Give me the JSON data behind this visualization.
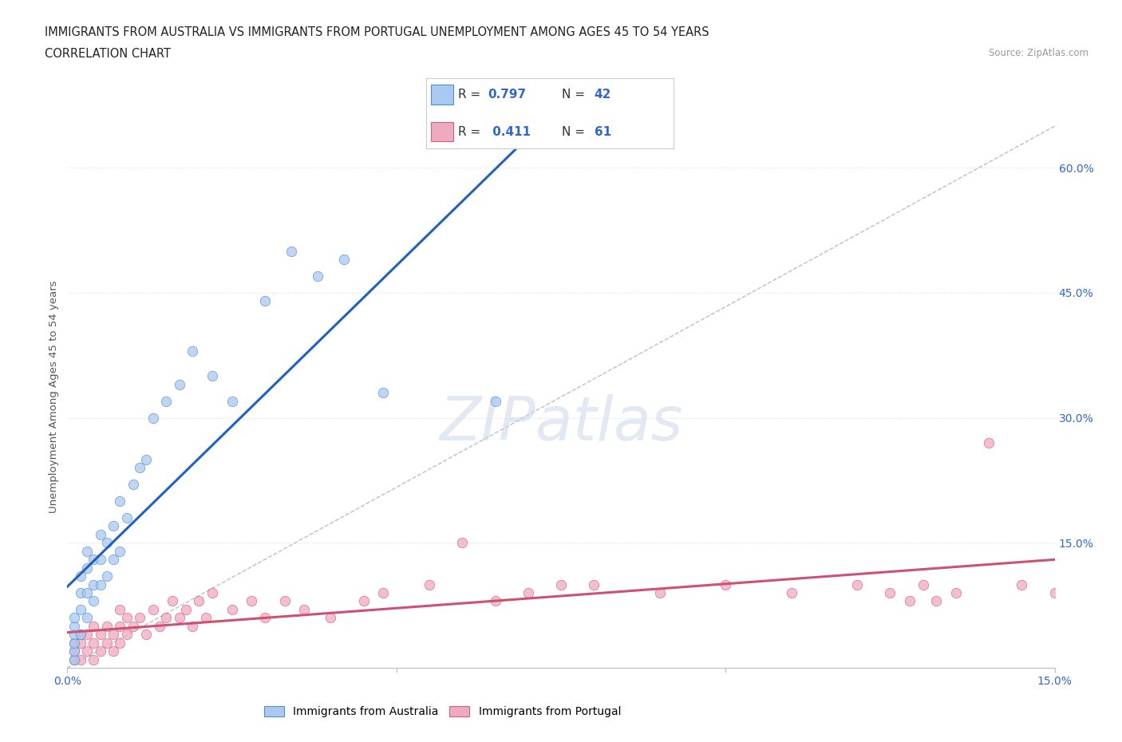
{
  "title_line1": "IMMIGRANTS FROM AUSTRALIA VS IMMIGRANTS FROM PORTUGAL UNEMPLOYMENT AMONG AGES 45 TO 54 YEARS",
  "title_line2": "CORRELATION CHART",
  "source_text": "Source: ZipAtlas.com",
  "ylabel": "Unemployment Among Ages 45 to 54 years",
  "xlim": [
    0.0,
    0.15
  ],
  "ylim": [
    0.0,
    0.65
  ],
  "xtick_positions": [
    0.0,
    0.05,
    0.1,
    0.15
  ],
  "xtick_labels": [
    "0.0%",
    "",
    "",
    "15.0%"
  ],
  "ytick_positions": [
    0.0,
    0.15,
    0.3,
    0.45,
    0.6
  ],
  "ytick_labels_right": [
    "",
    "15.0%",
    "30.0%",
    "45.0%",
    "60.0%"
  ],
  "australia_color": "#aac8f0",
  "portugal_color": "#f0aac0",
  "australia_edge_color": "#5090d0",
  "portugal_edge_color": "#d06080",
  "australia_line_color": "#2060c0",
  "portugal_line_color": "#d05070",
  "diagonal_color": "#aaaacc",
  "R_australia": 0.797,
  "N_australia": 42,
  "R_portugal": 0.411,
  "N_portugal": 61,
  "australia_x": [
    0.001,
    0.001,
    0.001,
    0.001,
    0.001,
    0.001,
    0.002,
    0.002,
    0.002,
    0.002,
    0.003,
    0.003,
    0.003,
    0.003,
    0.004,
    0.004,
    0.004,
    0.005,
    0.005,
    0.005,
    0.006,
    0.006,
    0.007,
    0.007,
    0.008,
    0.008,
    0.009,
    0.01,
    0.011,
    0.012,
    0.013,
    0.015,
    0.017,
    0.019,
    0.022,
    0.025,
    0.03,
    0.034,
    0.038,
    0.042,
    0.048,
    0.065
  ],
  "australia_y": [
    0.01,
    0.02,
    0.03,
    0.04,
    0.05,
    0.06,
    0.04,
    0.07,
    0.09,
    0.11,
    0.06,
    0.09,
    0.12,
    0.14,
    0.08,
    0.1,
    0.13,
    0.1,
    0.13,
    0.16,
    0.11,
    0.15,
    0.13,
    0.17,
    0.14,
    0.2,
    0.18,
    0.22,
    0.24,
    0.25,
    0.3,
    0.32,
    0.34,
    0.38,
    0.35,
    0.32,
    0.44,
    0.5,
    0.47,
    0.49,
    0.33,
    0.32
  ],
  "portugal_x": [
    0.001,
    0.001,
    0.001,
    0.002,
    0.002,
    0.002,
    0.003,
    0.003,
    0.004,
    0.004,
    0.004,
    0.005,
    0.005,
    0.006,
    0.006,
    0.007,
    0.007,
    0.008,
    0.008,
    0.008,
    0.009,
    0.009,
    0.01,
    0.011,
    0.012,
    0.013,
    0.014,
    0.015,
    0.016,
    0.017,
    0.018,
    0.019,
    0.02,
    0.021,
    0.022,
    0.025,
    0.028,
    0.03,
    0.033,
    0.036,
    0.04,
    0.045,
    0.048,
    0.055,
    0.06,
    0.065,
    0.07,
    0.075,
    0.08,
    0.09,
    0.1,
    0.11,
    0.12,
    0.125,
    0.128,
    0.13,
    0.132,
    0.135,
    0.14,
    0.145,
    0.15
  ],
  "portugal_y": [
    0.01,
    0.02,
    0.03,
    0.01,
    0.03,
    0.04,
    0.02,
    0.04,
    0.01,
    0.03,
    0.05,
    0.02,
    0.04,
    0.03,
    0.05,
    0.02,
    0.04,
    0.03,
    0.05,
    0.07,
    0.04,
    0.06,
    0.05,
    0.06,
    0.04,
    0.07,
    0.05,
    0.06,
    0.08,
    0.06,
    0.07,
    0.05,
    0.08,
    0.06,
    0.09,
    0.07,
    0.08,
    0.06,
    0.08,
    0.07,
    0.06,
    0.08,
    0.09,
    0.1,
    0.15,
    0.08,
    0.09,
    0.1,
    0.1,
    0.09,
    0.1,
    0.09,
    0.1,
    0.09,
    0.08,
    0.1,
    0.08,
    0.09,
    0.27,
    0.1,
    0.09
  ],
  "background_color": "#ffffff",
  "grid_color": "#d8dde8",
  "watermark": "ZIPatlas",
  "watermark_color": "#ccd8e8",
  "tick_color_blue": "#3366cc",
  "tick_color_gray": "#666666"
}
